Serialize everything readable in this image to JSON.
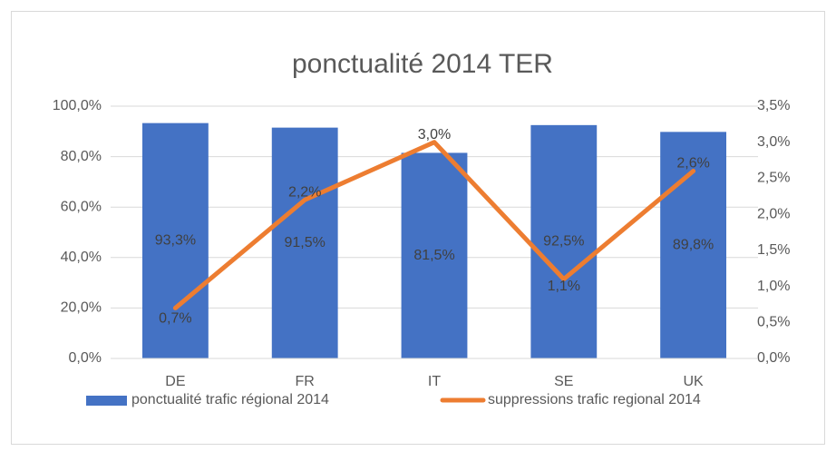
{
  "chart_data": {
    "type": "bar",
    "title": "ponctualité 2014 TER",
    "categories": [
      "DE",
      "FR",
      "IT",
      "SE",
      "UK"
    ],
    "series": [
      {
        "name": "ponctualité trafic régional 2014",
        "type": "bar",
        "color": "#4472c4",
        "axis": "y",
        "values": [
          93.3,
          91.5,
          81.5,
          92.5,
          89.8
        ],
        "value_labels": [
          "93,3%",
          "91,5%",
          "81,5%",
          "92,5%",
          "89,8%"
        ]
      },
      {
        "name": "suppressions trafic regional 2014",
        "type": "line",
        "color": "#ed7d31",
        "axis": "y2",
        "values": [
          0.7,
          2.2,
          3.0,
          1.1,
          2.6
        ],
        "value_labels": [
          "0,7%",
          "2,2%",
          "3,0%",
          "1,1%",
          "2,6%"
        ]
      }
    ],
    "ylim": [
      0,
      100
    ],
    "yticks": [
      {
        "value": 0,
        "label": "0,0%"
      },
      {
        "value": 20,
        "label": "20,0%"
      },
      {
        "value": 40,
        "label": "40,0%"
      },
      {
        "value": 60,
        "label": "60,0%"
      },
      {
        "value": 80,
        "label": "80,0%"
      },
      {
        "value": 100,
        "label": "100,0%"
      }
    ],
    "y2lim": [
      0,
      3.5
    ],
    "y2ticks": [
      {
        "value": 0,
        "label": "0,0%"
      },
      {
        "value": 0.5,
        "label": "0,5%"
      },
      {
        "value": 1,
        "label": "1,0%"
      },
      {
        "value": 1.5,
        "label": "1,5%"
      },
      {
        "value": 2,
        "label": "2,0%"
      },
      {
        "value": 2.5,
        "label": "2,5%"
      },
      {
        "value": 3,
        "label": "3,0%"
      },
      {
        "value": 3.5,
        "label": "3,5%"
      }
    ],
    "grid": true,
    "legend": "bottom"
  }
}
